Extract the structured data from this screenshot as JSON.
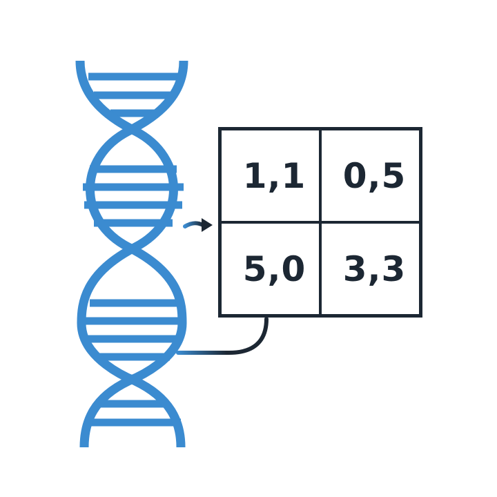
{
  "colors": {
    "helix": "#3b8bd0",
    "ink": "#1c2733",
    "background": "#ffffff"
  },
  "icons": {
    "helix": "dna-double-helix-icon",
    "arrow": "arrow-right-icon"
  },
  "payoff_matrix": {
    "cells": [
      {
        "label": "1,1"
      },
      {
        "label": "0,5"
      },
      {
        "label": "5,0"
      },
      {
        "label": "3,3"
      }
    ]
  }
}
